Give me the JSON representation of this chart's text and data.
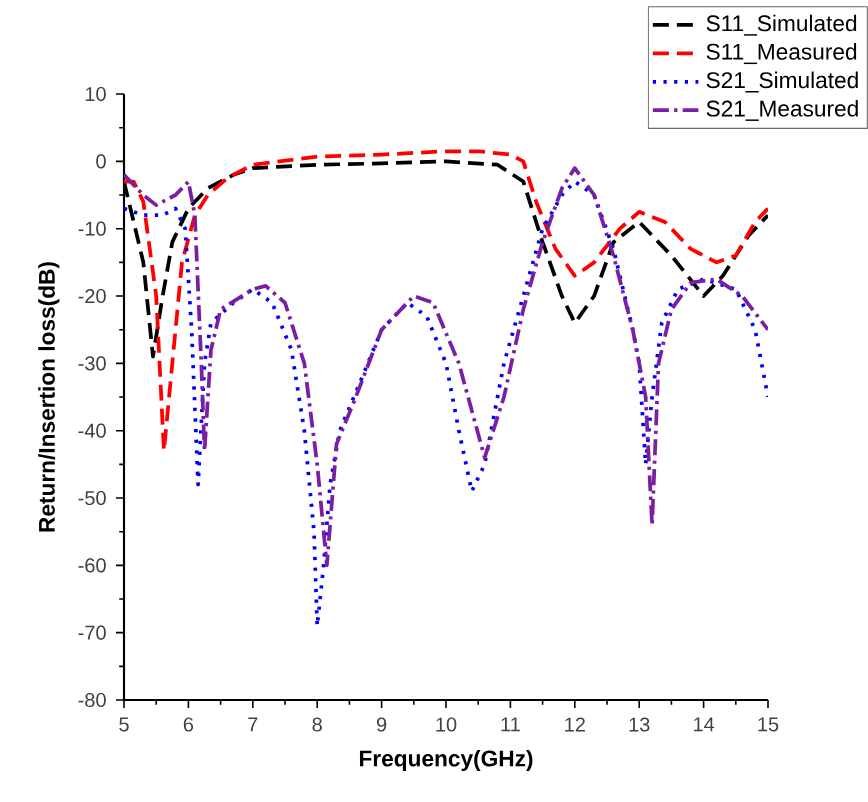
{
  "chart_data": {
    "type": "line",
    "xlabel": "Frequency(GHz)",
    "ylabel": "Return/Insertion loss(dB)",
    "xlim": [
      5,
      15
    ],
    "ylim": [
      -80,
      10
    ],
    "xticks": [
      5,
      6,
      7,
      8,
      9,
      10,
      11,
      12,
      13,
      14,
      15
    ],
    "yticks": [
      -80,
      -70,
      -60,
      -50,
      -40,
      -30,
      -20,
      -10,
      0,
      10
    ],
    "grid": false,
    "legend": "top right",
    "marker": "none",
    "series": [
      {
        "name": "S11_Simulated",
        "color": "#000000",
        "line_style": "dashed",
        "x": [
          5,
          5.3,
          5.45,
          5.6,
          5.75,
          6.0,
          6.3,
          6.7,
          7.0,
          8,
          9,
          10,
          10.8,
          11.2,
          11.5,
          11.8,
          12.0,
          12.3,
          12.6,
          13.0,
          13.5,
          14.0,
          14.3,
          14.7,
          15
        ],
        "values": [
          -3,
          -15,
          -29,
          -20,
          -12,
          -7,
          -4,
          -2,
          -1,
          -0.5,
          -0.3,
          0,
          -0.5,
          -3,
          -12,
          -20,
          -24,
          -20,
          -12,
          -9,
          -14,
          -20,
          -17,
          -11,
          -8
        ]
      },
      {
        "name": "S11_Measured",
        "color": "#ff0000",
        "line_style": "dashed",
        "x": [
          5,
          5.15,
          5.3,
          5.5,
          5.62,
          5.75,
          5.9,
          6.1,
          6.3,
          6.6,
          7.0,
          8,
          9,
          10,
          10.5,
          11,
          11.2,
          11.4,
          11.7,
          12.0,
          12.3,
          12.7,
          13.0,
          13.4,
          13.8,
          14.2,
          14.5,
          14.8,
          15
        ],
        "values": [
          -3,
          -3,
          -6,
          -20,
          -43,
          -30,
          -15,
          -8,
          -5,
          -2.5,
          -0.5,
          0.7,
          1,
          1.5,
          1.5,
          1,
          0,
          -6,
          -13,
          -17,
          -15,
          -10,
          -7.5,
          -9,
          -13,
          -15,
          -14,
          -9,
          -7
        ]
      },
      {
        "name": "S21_Simulated",
        "color": "#0000ff",
        "line_style": "dotted",
        "x": [
          5,
          5.3,
          5.6,
          5.8,
          5.95,
          6.05,
          6.15,
          6.25,
          6.35,
          6.7,
          7.0,
          7.3,
          7.6,
          7.8,
          7.95,
          8.0,
          8.1,
          8.2,
          8.35,
          8.7,
          9.0,
          9.4,
          9.7,
          10.0,
          10.2,
          10.4,
          10.6,
          10.9,
          11.2,
          11.5,
          11.8,
          12.0,
          12.3,
          12.6,
          12.9,
          13.0,
          13.1,
          13.2,
          13.35,
          13.6,
          14.0,
          14.5,
          14.8,
          15
        ],
        "values": [
          -7,
          -8,
          -8,
          -7,
          -10,
          -25,
          -48,
          -30,
          -24,
          -21,
          -19,
          -21,
          -28,
          -40,
          -55,
          -69,
          -60,
          -48,
          -40,
          -32,
          -25,
          -21,
          -23,
          -30,
          -40,
          -49,
          -45,
          -30,
          -20,
          -10,
          -5,
          -3,
          -5,
          -13,
          -25,
          -30,
          -45,
          -35,
          -24,
          -19,
          -17.5,
          -19,
          -25,
          -35
        ]
      },
      {
        "name": "S21_Measured",
        "color": "#7a1fa2",
        "line_style": "dashdot",
        "x": [
          5,
          5.3,
          5.5,
          5.8,
          6.0,
          6.1,
          6.2,
          6.25,
          6.35,
          6.5,
          7.0,
          7.2,
          7.5,
          7.8,
          8.0,
          8.1,
          8.15,
          8.3,
          8.6,
          9.0,
          9.5,
          9.8,
          10.2,
          10.6,
          10.9,
          11.2,
          11.5,
          11.8,
          12.0,
          12.3,
          12.6,
          12.9,
          13.1,
          13.2,
          13.3,
          13.5,
          13.8,
          14.2,
          14.6,
          15
        ],
        "values": [
          -2,
          -5,
          -6.5,
          -5,
          -3,
          -8,
          -30,
          -43,
          -28,
          -22,
          -19,
          -18.5,
          -21,
          -30,
          -45,
          -55,
          -60,
          -42,
          -35,
          -25,
          -20,
          -21,
          -30,
          -44,
          -35,
          -22,
          -12,
          -4,
          -1,
          -5,
          -14,
          -25,
          -35,
          -54,
          -30,
          -22,
          -18,
          -17.5,
          -20,
          -25
        ]
      }
    ]
  }
}
